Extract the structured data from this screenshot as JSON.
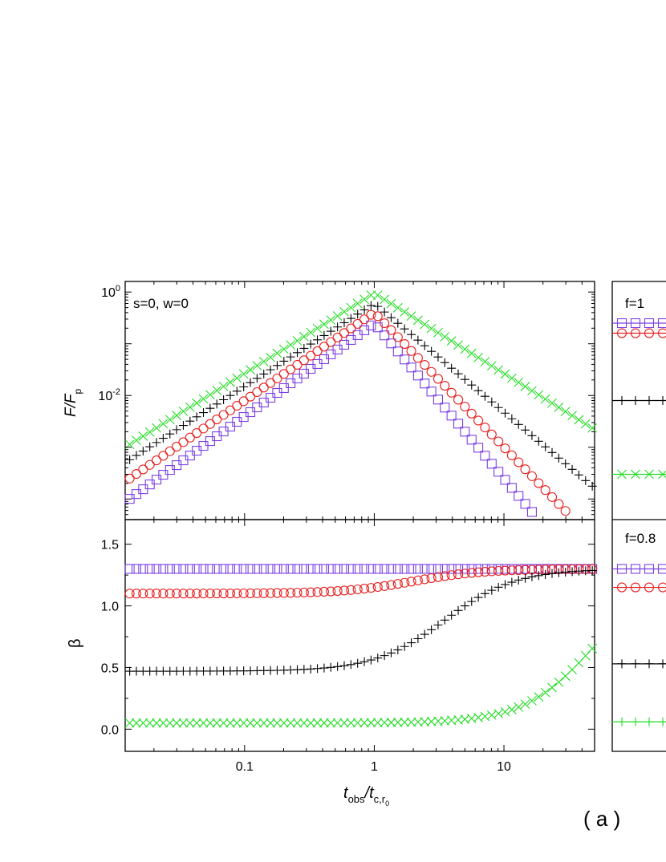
{
  "panel_label": "( a )",
  "chart_data": [
    {
      "type": "scatter",
      "annotation": "s=0,  w=0",
      "ylabel": "F/F",
      "ylabel_sub": "p",
      "xscale": "log",
      "yscale": "log",
      "xlim": [
        0.012,
        50
      ],
      "ylim": [
        4e-05,
        1.6
      ],
      "y_tick_labels": [
        {
          "base": "10",
          "exp": "0",
          "value": 1
        },
        {
          "base": "10",
          "exp": "-2",
          "value": 0.01
        }
      ],
      "series": [
        {
          "marker": "square",
          "color": "#7B3FE4",
          "peak_t": 1.0,
          "peak": 0.25,
          "rise": 1.8,
          "decay": 3.0
        },
        {
          "marker": "circle",
          "color": "#E81E1E",
          "peak_t": 1.0,
          "peak": 0.4,
          "rise": 1.7,
          "decay": 2.6
        },
        {
          "marker": "plus",
          "color": "#000000",
          "peak_t": 1.0,
          "peak": 0.6,
          "rise": 1.6,
          "decay": 2.1
        },
        {
          "marker": "cross",
          "color": "#22DD22",
          "peak_t": 1.0,
          "peak": 0.95,
          "rise": 1.55,
          "decay": 1.55
        }
      ]
    },
    {
      "type": "scatter",
      "ylabel": "β",
      "xlabel_main": "t",
      "xlabel_sub1": "obs",
      "xlabel_mid": "/t",
      "xlabel_sub2": "c,r",
      "xlabel_sub3": "0",
      "xscale": "log",
      "xlim": [
        0.012,
        50
      ],
      "ylim": [
        -0.18,
        1.7
      ],
      "x_tick_labels": [
        {
          "label": "0.1",
          "value": 0.1
        },
        {
          "label": "1",
          "value": 1
        },
        {
          "label": "10",
          "value": 10
        }
      ],
      "y_tick_labels": [
        {
          "label": "0.0",
          "value": 0.0
        },
        {
          "label": "0.5",
          "value": 0.5
        },
        {
          "label": "1.0",
          "value": 1.0
        },
        {
          "label": "1.5",
          "value": 1.5
        }
      ],
      "series": [
        {
          "marker": "square",
          "color": "#7B3FE4",
          "start": 1.3,
          "end": 1.3,
          "t0": 1.0
        },
        {
          "marker": "circle",
          "color": "#E81E1E",
          "start": 1.1,
          "end": 1.3,
          "t0": 2.0
        },
        {
          "marker": "plus",
          "color": "#000000",
          "start": 0.47,
          "end": 1.3,
          "t0": 3.5
        },
        {
          "marker": "cross",
          "color": "#22DD22",
          "start": 0.05,
          "end": 1.3,
          "t0": 50.0
        }
      ]
    },
    {
      "type": "line",
      "annotation": "f=1",
      "series": [
        {
          "marker": "square",
          "color": "#7B3FE4",
          "level": 0.25
        },
        {
          "marker": "circle",
          "color": "#E81E1E",
          "level": 0.16
        },
        {
          "marker": "plus",
          "color": "#000000",
          "level": 0.008
        },
        {
          "marker": "cross",
          "color": "#22DD22",
          "level": 0.0003
        }
      ]
    },
    {
      "type": "line",
      "annotation": "f=0.8",
      "series": [
        {
          "marker": "square",
          "color": "#7B3FE4",
          "level": 1.3
        },
        {
          "marker": "circle",
          "color": "#E81E1E",
          "level": 1.15
        },
        {
          "marker": "plus",
          "color": "#000000",
          "level": 0.53
        },
        {
          "marker": "cross",
          "color": "#22DD22",
          "level": 0.06
        }
      ]
    }
  ]
}
